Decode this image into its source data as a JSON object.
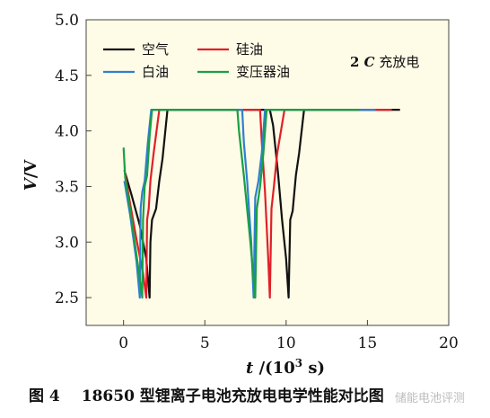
{
  "chart_data": {
    "type": "line",
    "title": "",
    "xlabel": {
      "italic": "t",
      "text": " /(10",
      "sup": "3",
      "suffix": " s)"
    },
    "ylabel": {
      "italic": "V",
      "text": "/V"
    },
    "xlim": [
      -2.3,
      20
    ],
    "ylim": [
      2.25,
      5.0
    ],
    "xticks": [
      0,
      5,
      10,
      15,
      20
    ],
    "yticks": [
      2.5,
      3.0,
      3.5,
      4.0,
      4.5,
      5.0
    ],
    "ytick_labels": [
      "2.5",
      "3.0",
      "3.5",
      "4.0",
      "4.5",
      "5.0"
    ],
    "annotation": {
      "bold": "2 ",
      "italic": "C",
      "text": " 充放电"
    },
    "legend_position": "top-left",
    "grid": false,
    "series": [
      {
        "name": "空气",
        "color": "#111111",
        "points": [
          [
            0.1,
            3.62
          ],
          [
            0.5,
            3.42
          ],
          [
            1.0,
            3.15
          ],
          [
            1.4,
            2.85
          ],
          [
            1.6,
            2.5
          ],
          [
            1.65,
            3.0
          ],
          [
            1.75,
            3.2
          ],
          [
            2.0,
            3.3
          ],
          [
            2.2,
            3.55
          ],
          [
            2.4,
            3.75
          ],
          [
            2.7,
            4.19
          ],
          [
            9.0,
            4.19
          ],
          [
            9.2,
            4.05
          ],
          [
            9.5,
            3.62
          ],
          [
            9.75,
            3.2
          ],
          [
            10.0,
            2.85
          ],
          [
            10.15,
            2.5
          ],
          [
            10.25,
            3.2
          ],
          [
            10.4,
            3.28
          ],
          [
            10.6,
            3.6
          ],
          [
            10.8,
            3.8
          ],
          [
            11.1,
            4.19
          ],
          [
            17.0,
            4.19
          ]
        ]
      },
      {
        "name": "硅油",
        "color": "#e0202a",
        "points": [
          [
            0.05,
            3.65
          ],
          [
            0.4,
            3.35
          ],
          [
            0.8,
            3.02
          ],
          [
            1.2,
            2.72
          ],
          [
            1.4,
            2.5
          ],
          [
            1.45,
            3.2
          ],
          [
            1.55,
            3.3
          ],
          [
            1.65,
            3.55
          ],
          [
            1.85,
            3.8
          ],
          [
            2.2,
            4.19
          ],
          [
            8.4,
            4.19
          ],
          [
            8.5,
            3.9
          ],
          [
            8.7,
            3.45
          ],
          [
            8.9,
            2.85
          ],
          [
            9.0,
            2.5
          ],
          [
            9.1,
            3.3
          ],
          [
            9.25,
            3.5
          ],
          [
            9.45,
            3.8
          ],
          [
            9.9,
            4.19
          ],
          [
            16.5,
            4.19
          ]
        ]
      },
      {
        "name": "白油",
        "color": "#2f7fd0",
        "points": [
          [
            0.05,
            3.55
          ],
          [
            0.4,
            3.25
          ],
          [
            0.8,
            2.82
          ],
          [
            1.0,
            2.5
          ],
          [
            1.05,
            3.3
          ],
          [
            1.15,
            3.45
          ],
          [
            1.3,
            3.55
          ],
          [
            1.5,
            3.9
          ],
          [
            1.7,
            4.19
          ],
          [
            7.3,
            4.19
          ],
          [
            7.4,
            3.9
          ],
          [
            7.6,
            3.55
          ],
          [
            7.85,
            3.0
          ],
          [
            8.0,
            2.5
          ],
          [
            8.1,
            3.4
          ],
          [
            8.3,
            3.55
          ],
          [
            8.5,
            3.8
          ],
          [
            8.7,
            4.19
          ],
          [
            15.5,
            4.19
          ]
        ]
      },
      {
        "name": "变压器油",
        "color": "#1a9e45",
        "points": [
          [
            0.0,
            3.85
          ],
          [
            0.1,
            3.58
          ],
          [
            0.5,
            3.2
          ],
          [
            0.95,
            2.72
          ],
          [
            1.15,
            2.5
          ],
          [
            1.2,
            3.2
          ],
          [
            1.3,
            3.5
          ],
          [
            1.45,
            3.6
          ],
          [
            1.6,
            3.95
          ],
          [
            1.75,
            4.19
          ],
          [
            7.0,
            4.19
          ],
          [
            7.1,
            4.0
          ],
          [
            7.4,
            3.6
          ],
          [
            7.8,
            3.0
          ],
          [
            8.1,
            2.5
          ],
          [
            8.2,
            3.3
          ],
          [
            8.4,
            3.5
          ],
          [
            8.6,
            3.8
          ],
          [
            8.8,
            4.19
          ],
          [
            14.5,
            4.19
          ]
        ]
      }
    ]
  },
  "caption": {
    "label": "图 4",
    "text": "18650 型锂离子电池充放电电学性能对比图"
  },
  "watermark": "储能电池评测"
}
